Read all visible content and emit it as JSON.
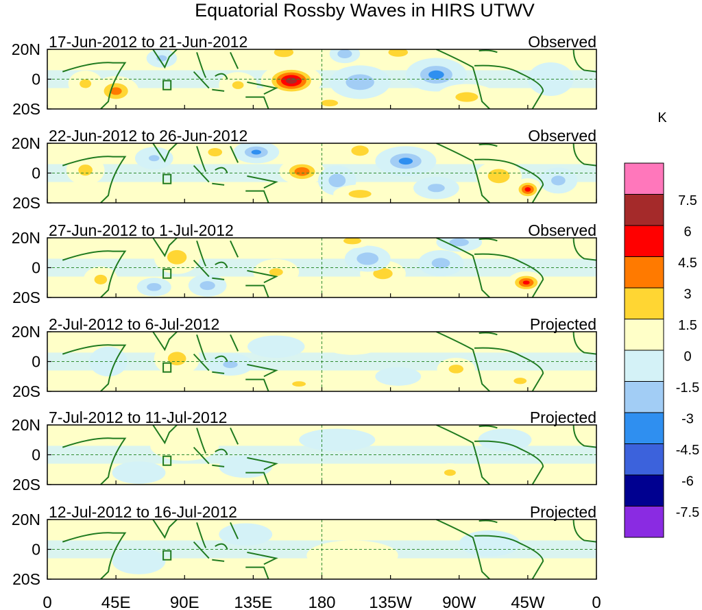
{
  "chart_data": {
    "type": "heatmap",
    "title": "Equatorial Rossby Waves in HIRS UTWV",
    "units": "K",
    "x_ticks": [
      "0",
      "45E",
      "90E",
      "135E",
      "180",
      "135W",
      "90W",
      "45W",
      "0"
    ],
    "y_ticks": [
      "20N",
      "0",
      "20S"
    ],
    "lon_range": [
      0,
      360
    ],
    "lat_range": [
      -20,
      20
    ],
    "colorbar": {
      "levels": [
        "7.5",
        "6",
        "4.5",
        "3",
        "1.5",
        "0",
        "-1.5",
        "-3",
        "-4.5",
        "-6",
        "-7.5"
      ],
      "colors": [
        "#ff77bb",
        "#a52a2a",
        "#ff0000",
        "#ff7a00",
        "#ffd633",
        "#ffffc8",
        "#d4f2f7",
        "#a2cdf5",
        "#2f8ff0",
        "#3c62dc",
        "#000090",
        "#8a2be2"
      ]
    },
    "panels": [
      {
        "date": "17-Jun-2012 to 21-Jun-2012",
        "status": "Observed",
        "blobs": [
          {
            "lon": 160,
            "lat": -1,
            "rlon": 16,
            "rlat": 9,
            "value": 7.0
          },
          {
            "lon": 45,
            "lat": -8,
            "rlon": 12,
            "rlat": 8,
            "value": 3.6
          },
          {
            "lon": 25,
            "lat": -3,
            "rlon": 9,
            "rlat": 7,
            "value": 1.8
          },
          {
            "lon": 205,
            "lat": -2,
            "rlon": 16,
            "rlat": 9,
            "value": -2.8
          },
          {
            "lon": 255,
            "lat": 3,
            "rlon": 16,
            "rlat": 9,
            "value": -3.6
          },
          {
            "lon": 195,
            "lat": 17,
            "rlon": 8,
            "rlat": 5,
            "value": -2.9
          },
          {
            "lon": 155,
            "lat": 18,
            "rlon": 12,
            "rlat": 6,
            "value": 2.4
          },
          {
            "lon": 230,
            "lat": 18,
            "rlon": 11,
            "rlat": 5,
            "value": 2.8
          },
          {
            "lon": 275,
            "lat": -12,
            "rlon": 16,
            "rlat": 7,
            "value": 2.0
          },
          {
            "lon": 125,
            "lat": -4,
            "rlon": 10,
            "rlat": 7,
            "value": 1.6
          },
          {
            "lon": 75,
            "lat": 14,
            "rlon": 8,
            "rlat": 5,
            "value": -1.8
          },
          {
            "lon": 185,
            "lat": -16,
            "rlon": 10,
            "rlat": 4,
            "value": 2.6
          },
          {
            "lon": 330,
            "lat": 0,
            "rlon": 12,
            "rlat": 9,
            "value": -1.2
          }
        ]
      },
      {
        "date": "22-Jun-2012 to 26-Jun-2012",
        "status": "Observed",
        "blobs": [
          {
            "lon": 167,
            "lat": 1,
            "rlon": 12,
            "rlat": 7,
            "value": 4.3
          },
          {
            "lon": 315,
            "lat": -11,
            "rlon": 8,
            "rlat": 6,
            "value": 5.2
          },
          {
            "lon": 296,
            "lat": -2,
            "rlon": 12,
            "rlat": 8,
            "value": 2.9
          },
          {
            "lon": 137,
            "lat": 14,
            "rlon": 12,
            "rlat": 6,
            "value": -3.3
          },
          {
            "lon": 235,
            "lat": 8,
            "rlon": 16,
            "rlat": 8,
            "value": -3.4
          },
          {
            "lon": 190,
            "lat": -5,
            "rlon": 10,
            "rlat": 8,
            "value": -2.6
          },
          {
            "lon": 205,
            "lat": 15,
            "rlon": 10,
            "rlat": 6,
            "value": 2.7
          },
          {
            "lon": 25,
            "lat": 2,
            "rlon": 10,
            "rlat": 8,
            "value": 2.0
          },
          {
            "lon": 110,
            "lat": 14,
            "rlon": 10,
            "rlat": 6,
            "value": 2.0
          },
          {
            "lon": 205,
            "lat": -14,
            "rlon": 14,
            "rlat": 5,
            "value": 2.4
          },
          {
            "lon": 255,
            "lat": -10,
            "rlon": 12,
            "rlat": 6,
            "value": -2.0
          },
          {
            "lon": 70,
            "lat": 10,
            "rlon": 10,
            "rlat": 6,
            "value": -1.5
          },
          {
            "lon": 335,
            "lat": -5,
            "rlon": 10,
            "rlat": 7,
            "value": -2.0
          }
        ]
      },
      {
        "date": "27-Jun-2012 to 1-Jul-2012",
        "status": "Observed",
        "blobs": [
          {
            "lon": 314,
            "lat": -10,
            "rlon": 10,
            "rlat": 6,
            "value": 5.0
          },
          {
            "lon": 220,
            "lat": -4,
            "rlon": 12,
            "rlat": 7,
            "value": 2.4
          },
          {
            "lon": 85,
            "lat": 7,
            "rlon": 12,
            "rlat": 9,
            "value": 2.4
          },
          {
            "lon": 35,
            "lat": -8,
            "rlon": 9,
            "rlat": 7,
            "value": 2.0
          },
          {
            "lon": 70,
            "lat": -13,
            "rlon": 9,
            "rlat": 5,
            "value": -2.4
          },
          {
            "lon": 105,
            "lat": -12,
            "rlon": 10,
            "rlat": 6,
            "value": -2.2
          },
          {
            "lon": 210,
            "lat": 6,
            "rlon": 12,
            "rlat": 7,
            "value": -2.9
          },
          {
            "lon": 258,
            "lat": 3,
            "rlon": 12,
            "rlat": 7,
            "value": -2.2
          },
          {
            "lon": 200,
            "lat": 18,
            "rlon": 10,
            "rlat": 4,
            "value": 2.8
          },
          {
            "lon": 270,
            "lat": 17,
            "rlon": 12,
            "rlat": 5,
            "value": -2.4
          },
          {
            "lon": 150,
            "lat": -3,
            "rlon": 12,
            "rlat": 7,
            "value": 1.6
          }
        ]
      },
      {
        "date": "2-Jul-2012 to 6-Jul-2012",
        "status": "Projected",
        "blobs": [
          {
            "lon": 85,
            "lat": 2,
            "rlon": 12,
            "rlat": 9,
            "value": 2.2
          },
          {
            "lon": 268,
            "lat": -5,
            "rlon": 10,
            "rlat": 6,
            "value": 2.1
          },
          {
            "lon": 310,
            "lat": -13,
            "rlon": 10,
            "rlat": 5,
            "value": 1.8
          },
          {
            "lon": 120,
            "lat": -2,
            "rlon": 12,
            "rlat": 6,
            "value": -1.7
          },
          {
            "lon": 150,
            "lat": 10,
            "rlon": 15,
            "rlat": 6,
            "value": -1.2
          },
          {
            "lon": 200,
            "lat": 12,
            "rlon": 16,
            "rlat": 6,
            "value": 1.2
          },
          {
            "lon": 165,
            "lat": -15,
            "rlon": 10,
            "rlat": 4,
            "value": 1.9
          },
          {
            "lon": 40,
            "lat": 0,
            "rlon": 10,
            "rlat": 8,
            "value": -1.2
          },
          {
            "lon": 230,
            "lat": -10,
            "rlon": 12,
            "rlat": 5,
            "value": -1.1
          }
        ]
      },
      {
        "date": "7-Jul-2012 to 11-Jul-2012",
        "status": "Projected",
        "blobs": [
          {
            "lon": 264,
            "lat": -12,
            "rlon": 9,
            "rlat": 5,
            "value": 1.8
          },
          {
            "lon": 90,
            "lat": 6,
            "rlon": 18,
            "rlat": 8,
            "value": 0.9
          },
          {
            "lon": 60,
            "lat": -12,
            "rlon": 14,
            "rlat": 6,
            "value": -0.9
          },
          {
            "lon": 130,
            "lat": -8,
            "rlon": 14,
            "rlat": 6,
            "value": -1.1
          },
          {
            "lon": 190,
            "lat": 10,
            "rlon": 20,
            "rlat": 6,
            "value": -0.9
          },
          {
            "lon": 300,
            "lat": 10,
            "rlon": 14,
            "rlat": 6,
            "value": -1.0
          }
        ]
      },
      {
        "date": "12-Jul-2012 to 16-Jul-2012",
        "status": "Projected",
        "blobs": [
          {
            "lon": 200,
            "lat": -4,
            "rlon": 24,
            "rlat": 8,
            "value": 0.8
          },
          {
            "lon": 130,
            "lat": 10,
            "rlon": 14,
            "rlat": 6,
            "value": -0.9
          },
          {
            "lon": 60,
            "lat": -8,
            "rlon": 14,
            "rlat": 7,
            "value": -0.9
          },
          {
            "lon": 290,
            "lat": 4,
            "rlon": 16,
            "rlat": 7,
            "value": -1.0
          },
          {
            "lon": 100,
            "lat": -14,
            "rlon": 10,
            "rlat": 4,
            "value": 0.8
          }
        ]
      }
    ]
  }
}
